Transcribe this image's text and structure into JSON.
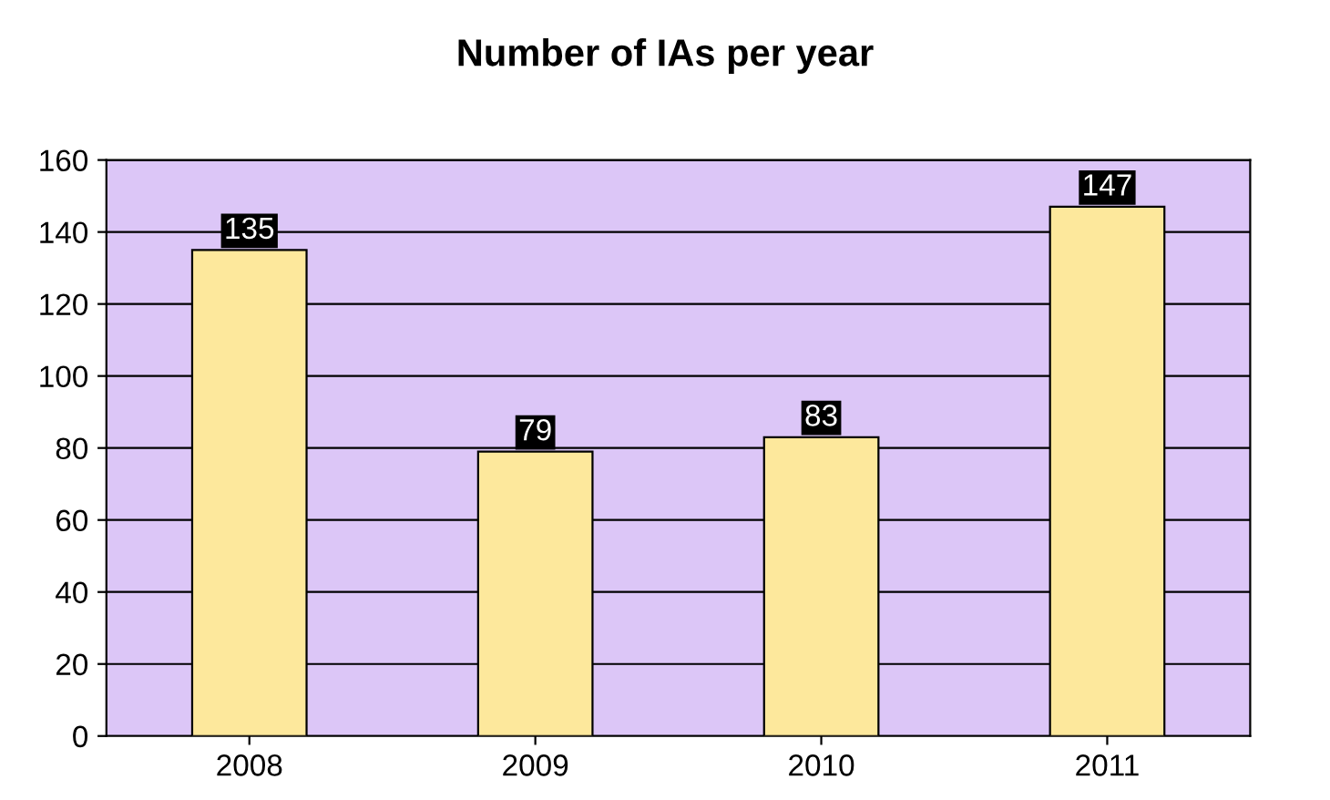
{
  "chart_data": {
    "type": "bar",
    "title": "Number of IAs per year",
    "categories": [
      "2008",
      "2009",
      "2010",
      "2011"
    ],
    "values": [
      135,
      79,
      83,
      147
    ],
    "color": "#fde89c",
    "ylim": [
      0,
      160
    ],
    "yticks": [
      0,
      20,
      40,
      60,
      80,
      100,
      120,
      140,
      160
    ],
    "grid": "y",
    "data_labels": true
  }
}
